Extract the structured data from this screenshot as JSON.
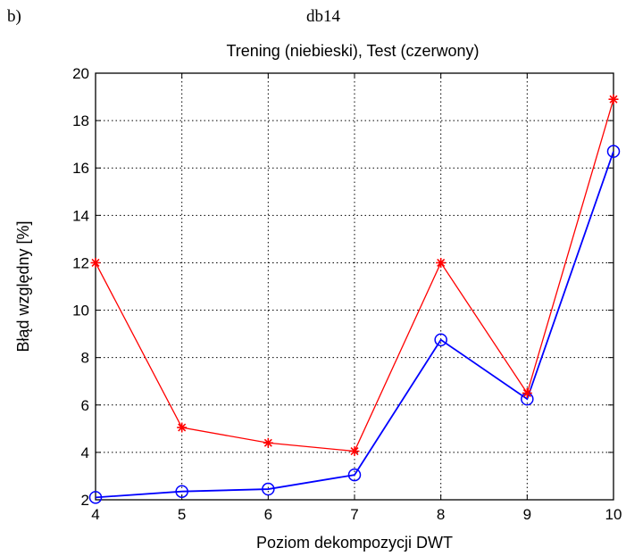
{
  "figure": {
    "panel_label": "b)",
    "caption_title": "db14"
  },
  "chart_data": {
    "type": "line",
    "title": "Trening (niebieski), Test (czerwony)",
    "xlabel": "Poziom dekompozycji DWT",
    "ylabel": "Błąd względny [%]",
    "xlim": [
      4,
      10
    ],
    "ylim": [
      2,
      20
    ],
    "xticks": [
      4,
      5,
      6,
      7,
      8,
      9,
      10
    ],
    "yticks": [
      2,
      4,
      6,
      8,
      10,
      12,
      14,
      16,
      18,
      20
    ],
    "grid": true,
    "x": [
      4,
      5,
      6,
      7,
      8,
      9,
      10
    ],
    "series": [
      {
        "values": [
          2.1,
          2.35,
          2.45,
          3.05,
          8.75,
          6.25,
          16.7
        ],
        "color": "#0000ff",
        "marker": "circle"
      },
      {
        "values": [
          12.0,
          5.05,
          4.4,
          4.05,
          12.0,
          6.5,
          18.9
        ],
        "color": "#ff0000",
        "marker": "star"
      }
    ]
  }
}
